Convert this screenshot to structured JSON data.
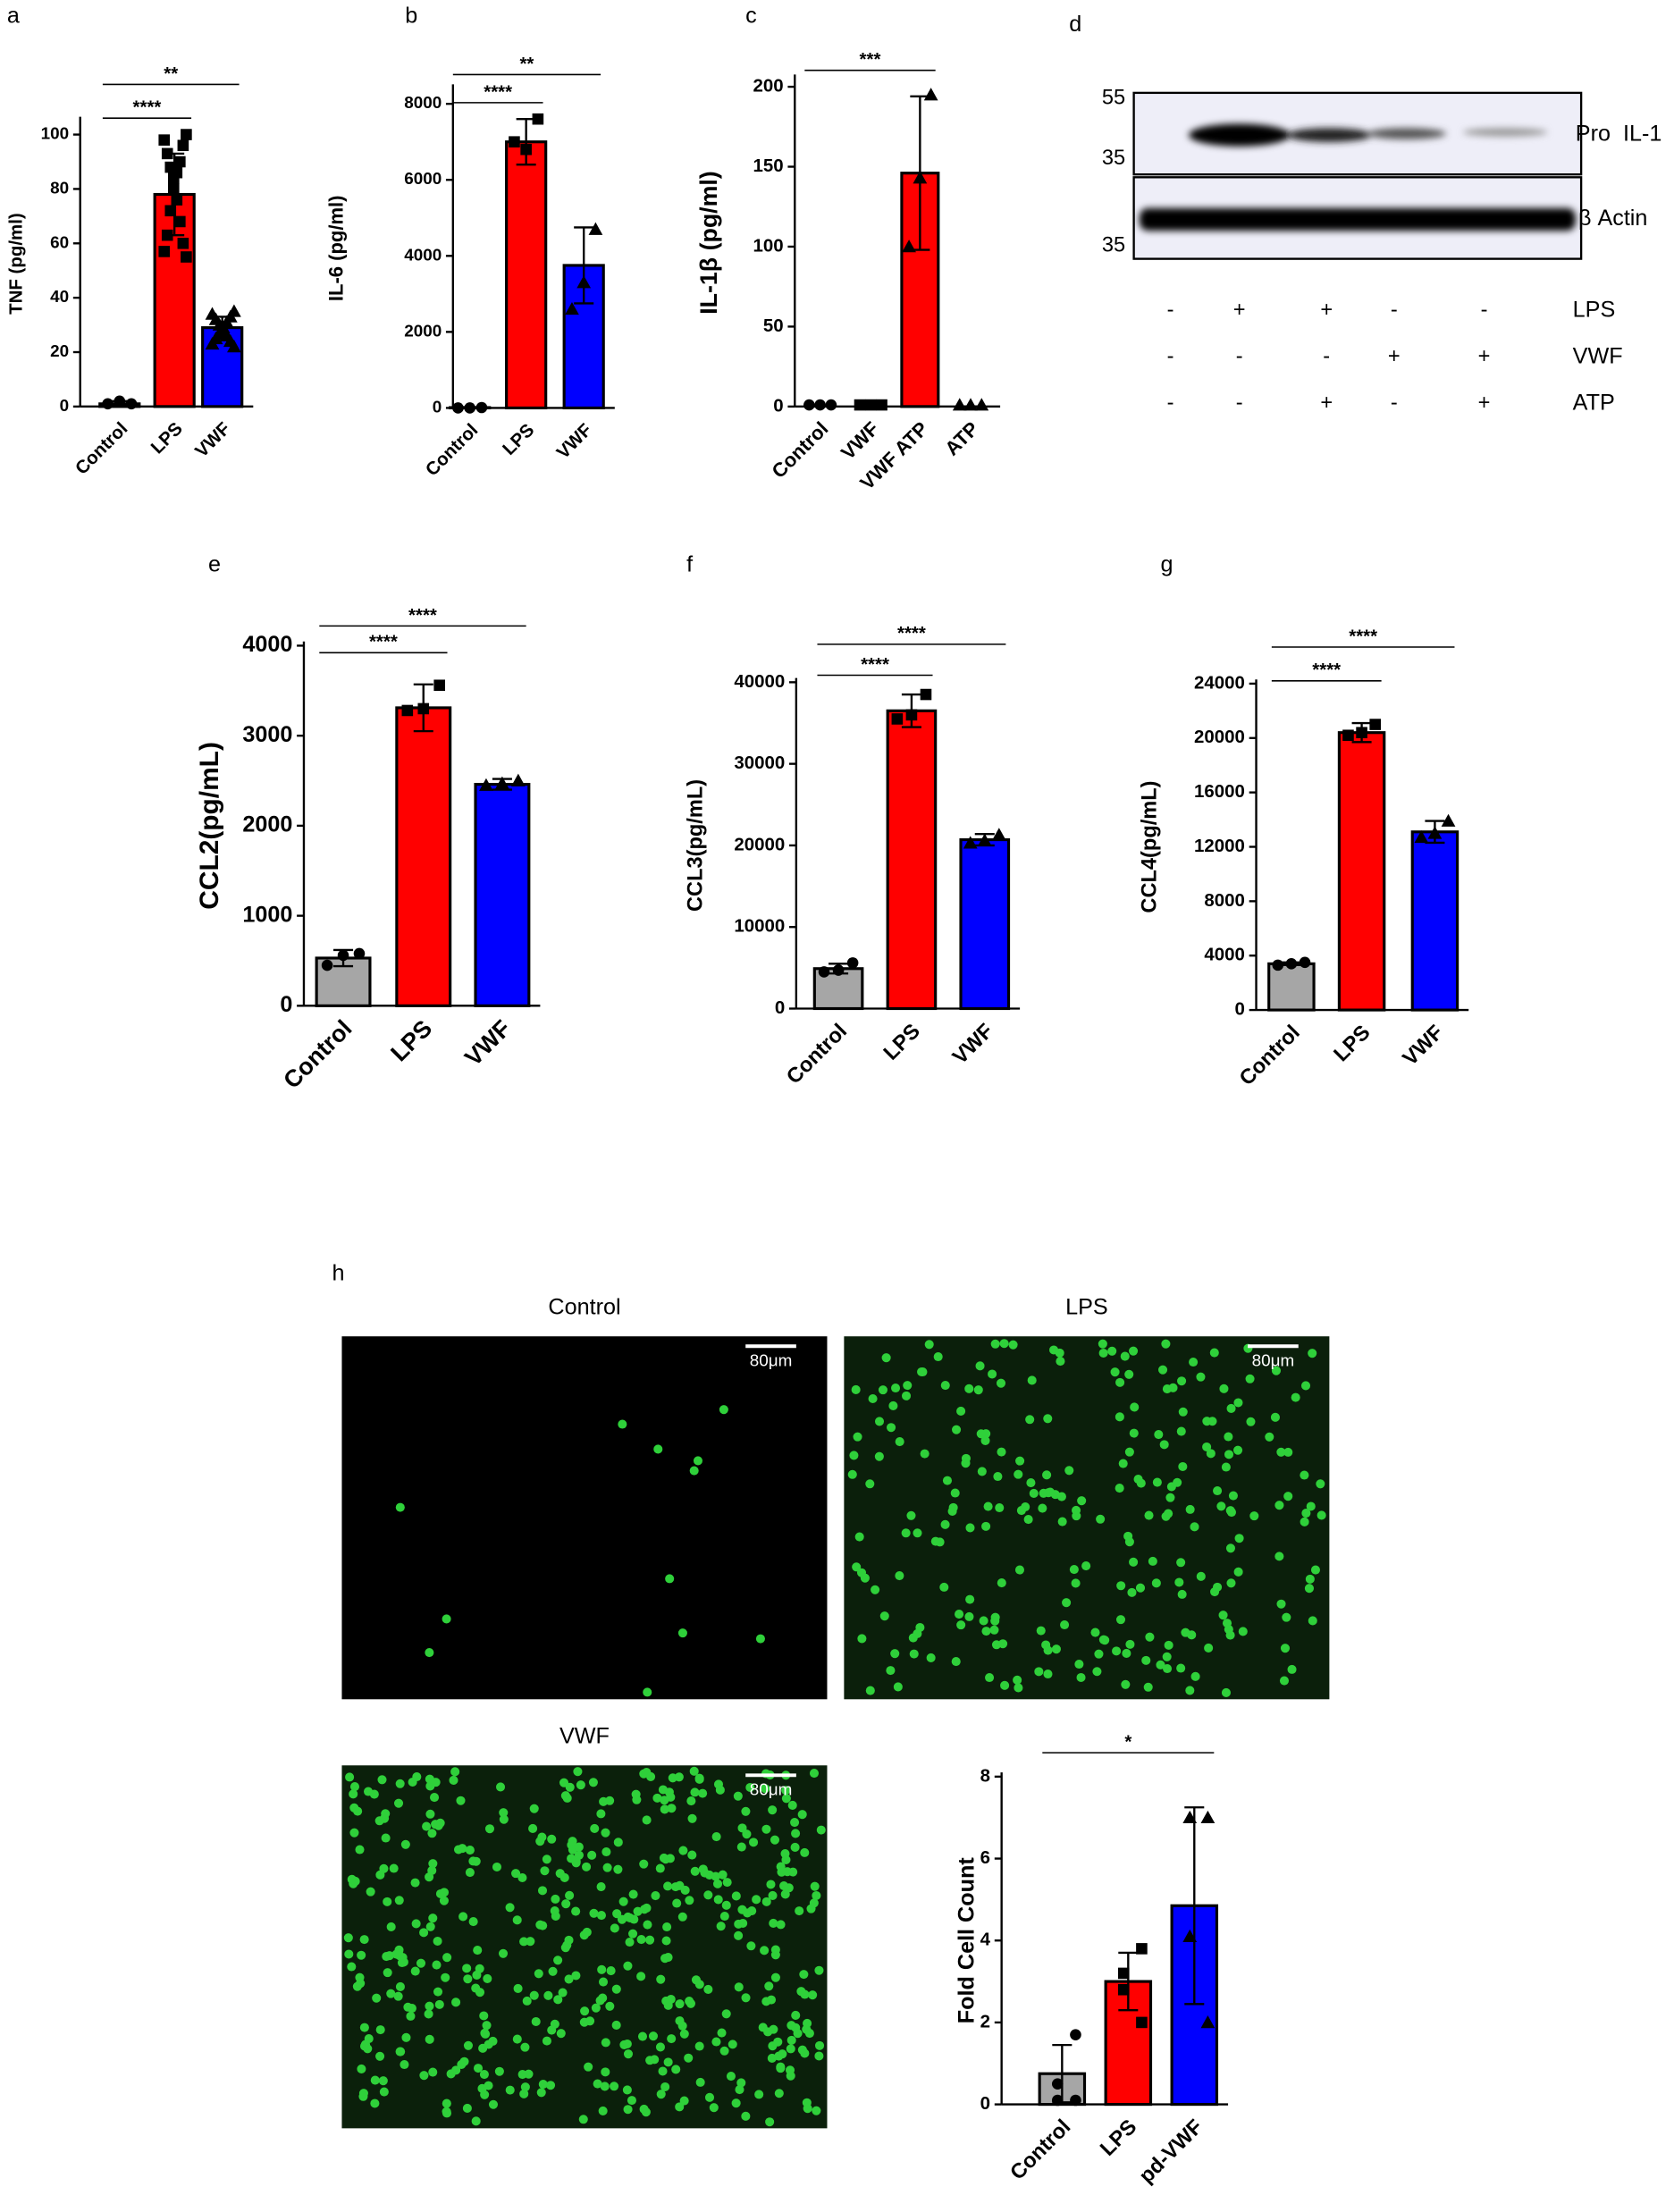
{
  "chart_data": [
    {
      "type": "bar",
      "panel": "a",
      "ylabel": "TNF (pg/ml)",
      "categories": [
        "Control",
        "LPS",
        "VWF"
      ],
      "values": [
        1,
        78,
        29
      ],
      "errors": [
        1,
        15,
        4
      ],
      "colors": [
        "#a6a6a6",
        "#ff0000",
        "#0000ff"
      ],
      "markers": [
        "circle",
        "square",
        "triangle"
      ],
      "points": [
        [
          1,
          2,
          1
        ],
        [
          100,
          98,
          96,
          93,
          90,
          88,
          86,
          84,
          80,
          76,
          72,
          68,
          63,
          60,
          57,
          55
        ],
        [
          35,
          34,
          33,
          32,
          31,
          30,
          29,
          28,
          27,
          26,
          25,
          24,
          23,
          22
        ]
      ],
      "ylim": [
        0,
        105
      ],
      "yticks": [
        0,
        20,
        40,
        60,
        80,
        100
      ],
      "significance": [
        {
          "label": "****",
          "from": 0,
          "to": 1
        },
        {
          "label": "**",
          "from": 0,
          "to": 2
        }
      ]
    },
    {
      "type": "bar",
      "panel": "b",
      "ylabel": "IL-6 (pg/ml)",
      "categories": [
        "Control",
        "LPS",
        "VWF"
      ],
      "values": [
        10,
        7000,
        3750
      ],
      "errors": [
        10,
        600,
        1000
      ],
      "colors": [
        "#a6a6a6",
        "#ff0000",
        "#0000ff"
      ],
      "markers": [
        "circle",
        "square",
        "triangle"
      ],
      "points": [
        [
          10,
          0,
          0
        ],
        [
          7600,
          6800,
          7000
        ],
        [
          4700,
          3300,
          2600
        ]
      ],
      "ylim": [
        0,
        8400
      ],
      "yticks": [
        0,
        2000,
        4000,
        6000,
        8000
      ],
      "significance": [
        {
          "label": "****",
          "from": 0,
          "to": 1
        },
        {
          "label": "**",
          "from": 0,
          "to": 2
        }
      ]
    },
    {
      "type": "bar",
      "panel": "c",
      "ylabel": "IL-1β (pg/ml)",
      "categories": [
        "Control",
        "VWF",
        "VWF ATP",
        "ATP"
      ],
      "values": [
        0,
        0,
        146,
        0
      ],
      "errors": [
        0,
        0,
        48,
        0
      ],
      "colors": [
        "#a6a6a6",
        "#a6a6a6",
        "#ff0000",
        "#a6a6a6"
      ],
      "markers": [
        "circle",
        "square",
        "triangle",
        "triangle"
      ],
      "points": [
        [
          1,
          1,
          1
        ],
        [
          1,
          1,
          1
        ],
        [
          195,
          143,
          100
        ],
        [
          1,
          1,
          1
        ]
      ],
      "ylim": [
        0,
        205
      ],
      "yticks": [
        0,
        50,
        100,
        150,
        200
      ],
      "significance": [
        {
          "label": "***",
          "from": 0,
          "to": 2
        }
      ]
    },
    {
      "type": "bar",
      "panel": "e",
      "ylabel": "CCL2(pg/mL)",
      "categories": [
        "Control",
        "LPS",
        "VWF"
      ],
      "values": [
        530,
        3310,
        2460
      ],
      "errors": [
        90,
        260,
        60
      ],
      "colors": [
        "#a6a6a6",
        "#ff0000",
        "#0000ff"
      ],
      "markers": [
        "circle",
        "square",
        "triangle"
      ],
      "points": [
        [
          580,
          560,
          450
        ],
        [
          3560,
          3300,
          3280
        ],
        [
          2500,
          2470,
          2450
        ]
      ],
      "ylim": [
        0,
        4000
      ],
      "yticks": [
        0,
        1000,
        2000,
        3000,
        4000
      ],
      "significance": [
        {
          "label": "****",
          "from": 0,
          "to": 1
        },
        {
          "label": "****",
          "from": 0,
          "to": 2
        }
      ]
    },
    {
      "type": "bar",
      "panel": "f",
      "ylabel": "CCL3(pg/mL)",
      "categories": [
        "Control",
        "LPS",
        "VWF"
      ],
      "values": [
        4900,
        36500,
        20700
      ],
      "errors": [
        600,
        2000,
        700
      ],
      "colors": [
        "#a6a6a6",
        "#ff0000",
        "#0000ff"
      ],
      "markers": [
        "circle",
        "square",
        "triangle"
      ],
      "points": [
        [
          5600,
          4700,
          4500
        ],
        [
          38500,
          36000,
          35500
        ],
        [
          21300,
          20600,
          20300
        ]
      ],
      "ylim": [
        0,
        40000
      ],
      "yticks": [
        0,
        10000,
        20000,
        30000,
        40000
      ],
      "significance": [
        {
          "label": "****",
          "from": 0,
          "to": 1
        },
        {
          "label": "****",
          "from": 0,
          "to": 2
        }
      ]
    },
    {
      "type": "bar",
      "panel": "g",
      "ylabel": "CCL4(pg/mL)",
      "categories": [
        "Control",
        "LPS",
        "VWF"
      ],
      "values": [
        3400,
        20400,
        13100
      ],
      "errors": [
        100,
        700,
        800
      ],
      "colors": [
        "#a6a6a6",
        "#ff0000",
        "#0000ff"
      ],
      "markers": [
        "circle",
        "square",
        "triangle"
      ],
      "points": [
        [
          3500,
          3400,
          3300
        ],
        [
          21000,
          20400,
          20200
        ],
        [
          13900,
          13000,
          12700
        ]
      ],
      "ylim": [
        0,
        24000
      ],
      "yticks": [
        0,
        4000,
        8000,
        12000,
        16000,
        20000,
        24000
      ],
      "significance": [
        {
          "label": "****",
          "from": 0,
          "to": 1
        },
        {
          "label": "****",
          "from": 0,
          "to": 2
        }
      ]
    },
    {
      "type": "bar",
      "ylabel": "Fold Cell Count",
      "categories": [
        "Control",
        "LPS",
        "pd-VWF"
      ],
      "values": [
        0.75,
        3.0,
        4.85
      ],
      "errors": [
        0.7,
        0.7,
        2.4
      ],
      "colors": [
        "#a6a6a6",
        "#ff0000",
        "#0000ff"
      ],
      "markers": [
        "circle",
        "square",
        "triangle"
      ],
      "points": [
        [
          1.7,
          0.5,
          0.1,
          0.1
        ],
        [
          3.8,
          3.2,
          2.8,
          2.0
        ],
        [
          7.0,
          7.0,
          4.1,
          2.0
        ]
      ],
      "ylim": [
        0,
        8
      ],
      "yticks": [
        0,
        2,
        4,
        6,
        8
      ],
      "significance": [
        {
          "label": "*",
          "from": 0,
          "to": 2
        }
      ]
    }
  ],
  "blot": {
    "panel": "d",
    "markers": [
      "55",
      "35",
      "35"
    ],
    "rows": [
      "Pro  IL-1",
      "β Actin"
    ],
    "conditions": [
      {
        "name": "LPS",
        "signs": [
          "-",
          "+",
          "+",
          "-",
          "-"
        ]
      },
      {
        "name": "VWF",
        "signs": [
          "-",
          "-",
          "-",
          "+",
          "+"
        ]
      },
      {
        "name": "ATP",
        "signs": [
          "-",
          "-",
          "+",
          "-",
          "+"
        ]
      }
    ]
  },
  "micrographs": {
    "panel": "h",
    "images": [
      {
        "title": "Control",
        "scale": "80μm"
      },
      {
        "title": "LPS",
        "scale": "80μm"
      },
      {
        "title": "VWF",
        "scale": "80μm"
      }
    ]
  }
}
